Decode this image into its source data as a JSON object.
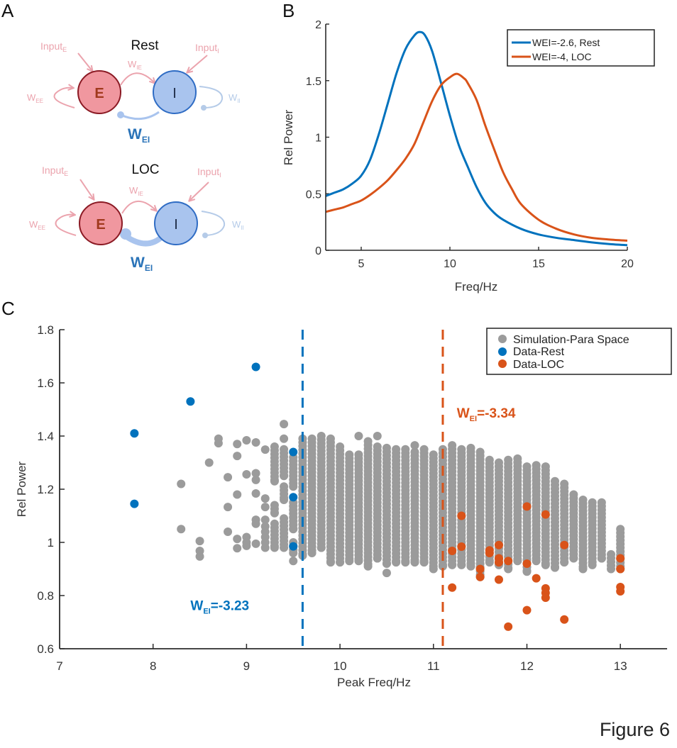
{
  "figure_label": "Figure 6",
  "panels": {
    "a": {
      "letter": "A",
      "diagrams": [
        {
          "title": "Rest",
          "e_label": "E",
          "i_label": "I",
          "input_e": "Input",
          "input_e_sub": "E",
          "input_i": "Input",
          "input_i_sub": "I",
          "w_ee": "W",
          "w_ee_sub": "EE",
          "w_ie": "W",
          "w_ie_sub": "IE",
          "w_ii": "W",
          "w_ii_sub": "II",
          "w_ei": "W",
          "w_ei_sub": "EI",
          "w_ei_strength": "weak"
        },
        {
          "title": "LOC",
          "e_label": "E",
          "i_label": "I",
          "input_e": "Input",
          "input_e_sub": "E",
          "input_i": "Input",
          "input_i_sub": "I",
          "w_ee": "W",
          "w_ee_sub": "EE",
          "w_ie": "W",
          "w_ie_sub": "IE",
          "w_ii": "W",
          "w_ii_sub": "II",
          "w_ei": "W",
          "w_ei_sub": "EI",
          "w_ei_strength": "strong"
        }
      ]
    },
    "b": {
      "letter": "B"
    },
    "c": {
      "letter": "C"
    }
  },
  "colors": {
    "blue": "#0072bd",
    "orange": "#d95319",
    "gray": "#9b9b9b",
    "e_fill": "#f0979f",
    "e_stroke": "#8b1a24",
    "e_text": "#a0391d",
    "i_fill": "#a9c4ee",
    "i_stroke": "#2f6cc4",
    "pink_label": "#eba3ad",
    "light_blue_label": "#b5cbe8",
    "w_ei_label": "#2a73b8"
  },
  "chart_data": [
    {
      "id": "B",
      "type": "line",
      "title": "",
      "xlabel": "Freq/Hz",
      "ylabel": "Rel Power",
      "xlim": [
        3,
        20
      ],
      "ylim": [
        0,
        2
      ],
      "xticks": [
        5,
        10,
        15,
        20
      ],
      "yticks": [
        0,
        0.5,
        1,
        1.5,
        2
      ],
      "ytick_labels": [
        "0",
        "0.5",
        "1",
        "1.5",
        "2"
      ],
      "grid": false,
      "legend_position": "top-right",
      "series": [
        {
          "name": "WEI=-2.6, Rest",
          "color": "#0072bd",
          "x": [
            3,
            3.5,
            4,
            4.5,
            5,
            5.5,
            6,
            6.5,
            7,
            7.5,
            8,
            8.3,
            8.6,
            9,
            9.5,
            10,
            10.5,
            11,
            11.5,
            12,
            12.5,
            13,
            14,
            15,
            16,
            17,
            18,
            19,
            20
          ],
          "y": [
            0.48,
            0.51,
            0.54,
            0.59,
            0.66,
            0.8,
            1.03,
            1.3,
            1.57,
            1.78,
            1.9,
            1.93,
            1.9,
            1.76,
            1.48,
            1.19,
            0.93,
            0.74,
            0.56,
            0.42,
            0.33,
            0.27,
            0.19,
            0.14,
            0.11,
            0.09,
            0.07,
            0.055,
            0.045
          ]
        },
        {
          "name": "WEI=-4, LOC",
          "color": "#d95319",
          "x": [
            3,
            3.5,
            4,
            4.5,
            5,
            5.5,
            6,
            6.5,
            7,
            7.5,
            8,
            8.5,
            9,
            9.5,
            10,
            10.4,
            10.8,
            11,
            11.5,
            12,
            12.5,
            13,
            13.5,
            14,
            15,
            16,
            17,
            18,
            19,
            20
          ],
          "y": [
            0.34,
            0.36,
            0.38,
            0.41,
            0.44,
            0.49,
            0.55,
            0.62,
            0.71,
            0.81,
            0.94,
            1.13,
            1.32,
            1.46,
            1.53,
            1.56,
            1.52,
            1.48,
            1.33,
            1.1,
            0.89,
            0.69,
            0.54,
            0.41,
            0.27,
            0.19,
            0.14,
            0.11,
            0.095,
            0.085
          ]
        }
      ]
    },
    {
      "id": "C",
      "type": "scatter",
      "title": "",
      "xlabel": "Peak Freq/Hz",
      "ylabel": "Rel Power",
      "xlim": [
        7,
        13.5
      ],
      "ylim": [
        0.6,
        1.8
      ],
      "xticks": [
        7,
        8,
        9,
        10,
        11,
        12,
        13
      ],
      "yticks": [
        0.6,
        0.8,
        1.0,
        1.2,
        1.4,
        1.6,
        1.8
      ],
      "ytick_labels": [
        "0.6",
        "0.8",
        "1",
        "1.2",
        "1.4",
        "1.6",
        "1.8"
      ],
      "grid": false,
      "legend_position": "top-right",
      "legend": [
        "Simulation-Para Space",
        "Data-Rest",
        "Data-LOC"
      ],
      "vlines": [
        {
          "x": 9.6,
          "color": "#0072bd",
          "style": "dashed",
          "label": "W",
          "label_sub": "EI",
          "label_rest": "=-3.23",
          "label_x": 8.4,
          "label_y": 0.745
        },
        {
          "x": 11.1,
          "color": "#d95319",
          "style": "dashed",
          "label": "W",
          "label_sub": "EI",
          "label_rest": "=-3.34",
          "label_x": 11.25,
          "label_y": 1.47
        }
      ],
      "simulation_points": {
        "name": "Simulation-Para Space",
        "color": "#9b9b9b",
        "scattered": [
          [
            8.3,
            1.22
          ],
          [
            8.3,
            1.05
          ],
          [
            8.5,
            1.005
          ],
          [
            8.5,
            0.968
          ],
          [
            8.5,
            0.947
          ],
          [
            8.6,
            1.3
          ],
          [
            8.7,
            1.39
          ],
          [
            8.7,
            1.373
          ],
          [
            8.8,
            1.245
          ],
          [
            8.8,
            1.133
          ],
          [
            8.8,
            1.04
          ],
          [
            8.9,
            1.37
          ],
          [
            8.9,
            1.325
          ],
          [
            8.9,
            1.18
          ],
          [
            8.9,
            1.013
          ],
          [
            8.9,
            0.978
          ],
          [
            9.0,
            1.384
          ],
          [
            9.0,
            1.256
          ],
          [
            9.0,
            1.02
          ],
          [
            9.0,
            0.987
          ],
          [
            9.0,
            1.0
          ],
          [
            9.1,
            1.376
          ],
          [
            9.1,
            1.26
          ],
          [
            9.1,
            1.235
          ],
          [
            9.1,
            1.184
          ],
          [
            9.1,
            1.085
          ],
          [
            9.1,
            1.07
          ],
          [
            9.1,
            0.995
          ],
          [
            9.2,
            1.349
          ],
          [
            9.2,
            1.165
          ],
          [
            9.2,
            1.133
          ],
          [
            9.2,
            1.085
          ],
          [
            9.2,
            1.06
          ],
          [
            9.2,
            1.04
          ],
          [
            9.2,
            1.02
          ],
          [
            9.2,
            1.0
          ],
          [
            9.2,
            0.98
          ],
          [
            9.4,
            1.445
          ],
          [
            9.4,
            1.39
          ],
          [
            9.5,
            0.93
          ],
          [
            10.2,
            1.4
          ],
          [
            10.4,
            1.4
          ],
          [
            10.5,
            0.885
          ],
          [
            10.8,
            1.365
          ]
        ],
        "column_segments": [
          [
            9.3,
            1.36,
            1.23
          ],
          [
            9.3,
            1.14,
            1.11
          ],
          [
            9.3,
            1.07,
            0.98
          ],
          [
            9.4,
            1.35,
            1.25
          ],
          [
            9.4,
            1.21,
            1.16
          ],
          [
            9.4,
            1.09,
            0.98
          ],
          [
            9.5,
            1.32,
            1.21
          ],
          [
            9.5,
            1.15,
            1.05
          ],
          [
            9.5,
            1.0,
            0.96
          ],
          [
            9.6,
            1.39,
            0.95
          ],
          [
            9.7,
            1.39,
            0.96
          ],
          [
            9.8,
            1.4,
            0.98
          ],
          [
            9.9,
            1.39,
            0.925
          ],
          [
            10.0,
            1.36,
            0.925
          ],
          [
            10.1,
            1.33,
            0.93
          ],
          [
            10.2,
            1.33,
            0.93
          ],
          [
            10.3,
            1.38,
            0.91
          ],
          [
            10.4,
            1.36,
            0.94
          ],
          [
            10.5,
            1.355,
            0.92
          ],
          [
            10.6,
            1.35,
            0.925
          ],
          [
            10.7,
            1.35,
            0.925
          ],
          [
            10.8,
            1.34,
            0.925
          ],
          [
            10.9,
            1.35,
            0.925
          ],
          [
            11.0,
            1.33,
            0.9
          ],
          [
            11.1,
            1.35,
            0.91
          ],
          [
            11.2,
            1.365,
            0.915
          ],
          [
            11.3,
            1.35,
            0.915
          ],
          [
            11.4,
            1.355,
            0.91
          ],
          [
            11.5,
            1.34,
            0.87
          ],
          [
            11.6,
            1.31,
            0.925
          ],
          [
            11.7,
            1.3,
            0.915
          ],
          [
            11.8,
            1.31,
            0.9
          ],
          [
            11.9,
            1.315,
            0.93
          ],
          [
            12.0,
            1.285,
            0.89
          ],
          [
            12.1,
            1.29,
            0.93
          ],
          [
            12.2,
            1.285,
            0.915
          ],
          [
            12.3,
            1.23,
            0.905
          ],
          [
            12.4,
            1.22,
            0.925
          ],
          [
            12.5,
            1.18,
            0.94
          ],
          [
            12.6,
            1.16,
            0.9
          ],
          [
            12.7,
            1.15,
            0.915
          ],
          [
            12.8,
            1.15,
            0.94
          ],
          [
            12.9,
            0.955,
            0.9
          ],
          [
            13.0,
            1.05,
            0.9
          ]
        ]
      },
      "series": [
        {
          "name": "Data-Rest",
          "color": "#0072bd",
          "points": [
            [
              7.8,
              1.41
            ],
            [
              8.4,
              1.53
            ],
            [
              9.1,
              1.66
            ],
            [
              7.8,
              1.145
            ],
            [
              9.5,
              1.34
            ],
            [
              9.5,
              1.17
            ],
            [
              9.5,
              0.985
            ]
          ]
        },
        {
          "name": "Data-LOC",
          "color": "#d95319",
          "points": [
            [
              11.3,
              1.1
            ],
            [
              12.0,
              1.135
            ],
            [
              12.2,
              1.105
            ],
            [
              11.2,
              0.968
            ],
            [
              11.3,
              0.984
            ],
            [
              11.6,
              0.97
            ],
            [
              11.6,
              0.96
            ],
            [
              11.7,
              0.99
            ],
            [
              11.7,
              0.94
            ],
            [
              11.7,
              0.925
            ],
            [
              11.8,
              0.93
            ],
            [
              11.5,
              0.9
            ],
            [
              11.5,
              0.87
            ],
            [
              11.7,
              0.86
            ],
            [
              11.2,
              0.83
            ],
            [
              12.0,
              0.92
            ],
            [
              12.1,
              0.865
            ],
            [
              12.2,
              0.827
            ],
            [
              12.2,
              0.81
            ],
            [
              12.2,
              0.792
            ],
            [
              12.4,
              0.99
            ],
            [
              12.0,
              0.745
            ],
            [
              12.4,
              0.71
            ],
            [
              11.8,
              0.683
            ],
            [
              13.0,
              0.94
            ],
            [
              13.0,
              0.9
            ],
            [
              13.0,
              0.832
            ],
            [
              13.0,
              0.816
            ]
          ]
        }
      ]
    }
  ]
}
